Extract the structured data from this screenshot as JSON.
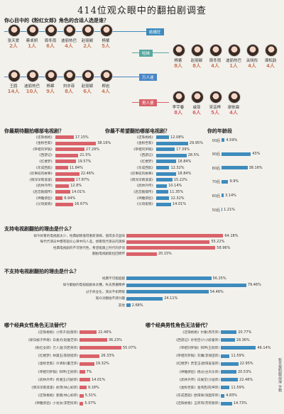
{
  "main_title": "414位观众眼中的翻拍剧调查",
  "casting": {
    "title": "你心目中的《粉红女郎》角色的合适人选是谁？",
    "roles": [
      {
        "name": "结婚狂",
        "color": "#3d8bbd"
      },
      {
        "name": "哈妹",
        "color": "#57a9a0"
      },
      {
        "name": "万人迷",
        "color": "#4a86c8"
      },
      {
        "name": "男人婆",
        "color": "#d9626a"
      }
    ],
    "groups": [
      {
        "role": "结婚狂",
        "candidates": [
          {
            "name": "张天爱",
            "votes": "2人"
          },
          {
            "name": "蔡卓妍",
            "votes": "1人"
          },
          {
            "name": "周冬雨",
            "votes": "6人"
          },
          {
            "name": "迪丽热巴",
            "votes": "4人"
          },
          {
            "name": "赵丽颖",
            "votes": "2人"
          },
          {
            "name": "杨紫",
            "votes": "5人"
          }
        ]
      },
      {
        "role": "哈妹",
        "candidates": [
          {
            "name": "杨紫",
            "votes": "8人"
          },
          {
            "name": "赵丽颖",
            "votes": "8人"
          },
          {
            "name": "周冬雨",
            "votes": "4人"
          },
          {
            "name": "迪丽热巴",
            "votes": "1人"
          },
          {
            "name": "关晓彤",
            "votes": "4人"
          },
          {
            "name": "谭松韵",
            "votes": "4人"
          }
        ]
      },
      {
        "role": "万人迷",
        "candidates": [
          {
            "name": "王鸥",
            "votes": "14人"
          },
          {
            "name": "迪丽热巴",
            "votes": "10人"
          },
          {
            "name": "杨幂",
            "votes": "9人"
          },
          {
            "name": "刘亦菲",
            "votes": "8人"
          },
          {
            "name": "赵丽颖",
            "votes": "6人"
          },
          {
            "name": "柳岩",
            "votes": "4人"
          }
        ]
      },
      {
        "role": "男人婆",
        "candidates": [
          {
            "name": "李宇春",
            "votes": "8人"
          },
          {
            "name": "咸菲",
            "votes": "6人"
          },
          {
            "name": "宋芸桦",
            "votes": "5人"
          },
          {
            "name": "谢依霖",
            "votes": "4人"
          }
        ]
      }
    ]
  },
  "chart_data": [
    {
      "type": "bar",
      "title": "你最期待翻拍哪部电视剧？",
      "categories": [
        "《还珠格格》",
        "《金粉世家》",
        "《宰相刘罗锅》",
        "《西游记》",
        "《红楼梦》",
        "《东成西就》",
        "《炊事班的故事》",
        "《情深深雨濛濛》",
        "《武林外传》",
        "《后宫甄嬛传》",
        "《神雕侠侣》",
        "《父母爱情》"
      ],
      "values": [
        17.15,
        38.16,
        27.29,
        21.5,
        19.57,
        11.84,
        22.46,
        17.87,
        12.8,
        14.01,
        6.94,
        16.67
      ]
    },
    {
      "type": "bar",
      "title": "你最不希望翻拍哪部电视剧？",
      "categories": [
        "《还珠格格》",
        "《金粉世家》",
        "《宰相刘罗锅》",
        "《西游记》",
        "《红楼梦》",
        "《东成西就》",
        "《炊事班的故事》",
        "《情深深雨濛濛》",
        "《武林外传》",
        "《后宫甄嬛传》",
        "《神雕侠侣》",
        "《父母爱情》"
      ],
      "values": [
        12.08,
        29.95,
        17.39,
        28.5,
        18.84,
        12.32,
        18.84,
        15.22,
        10.14,
        11.35,
        12.32,
        14.01
      ]
    },
    {
      "type": "bar",
      "title": "你的年龄段",
      "categories": [
        "00后",
        "90后",
        "80后",
        "70后",
        "60后",
        "50后"
      ],
      "values": [
        4.59,
        43,
        38.16,
        9.9,
        3.14,
        1.21
      ]
    },
    {
      "type": "bar",
      "title": "支持电视剧翻拍的理由是什么？",
      "categories": [
        "如今好看的电视剧太少，经典剧情值得重新演绎，值得多次品味",
        "每代代演员中都有观众心目中的人选，想看现代演员的演绎",
        "经典电视剧的不可替代性，希望能跟上时代的步伐",
        "翻拍电视剧能拉回情怀"
      ],
      "values": [
        64.18,
        55.22,
        58.96,
        20.15
      ]
    },
    {
      "type": "bar",
      "title": "不支持电视剧翻拍的理由是什么？",
      "categories": [
        "经典不可能超越",
        "如今翻拍的电视剧剧本太糟，失去原著精神",
        "过于商业化，演员不如原版",
        "观众对翻拍不感兴趣",
        "其他"
      ],
      "values": [
        56.25,
        79.46,
        54.46,
        24.11,
        2.68
      ]
    },
    {
      "type": "bar",
      "title": "哪个经典女性角色无法替代？",
      "categories": [
        "《还珠格格》小燕子(赵薇饰)",
        "《新白娘子传奇》白素贞(赵雅芝饰)",
        "《粉红女郎》万人迷(刘若英饰)",
        "《红楼梦》林黛玉(陈晓旭饰)",
        "《金粉世家》冷清秋(董洁饰)",
        "《宰相刘罗锅》和珅(王刚饰)",
        "《武林外传》佟湘玉(闫妮饰)",
        "《情深深雨濛濛》依萍(林心如饰)",
        "《还珠格格》紫薇(林心如饰)",
        "《神雕侠侣》小龙女(李若彤饰)"
      ],
      "values": [
        22.46,
        36.23,
        55.07,
        26.33,
        19.32,
        7,
        14.01,
        9.18,
        5.31,
        5.07
      ]
    },
    {
      "type": "bar",
      "title": "哪个经典男性角色无法替代？",
      "categories": [
        "《还珠格格》尔康(周杰饰)",
        "《西游记》孙悟空(六小龄童饰)",
        "《宰相刘罗锅》和珅(王刚饰)",
        "《宰相刘罗锅》刘墉(李保田饰)",
        "《红楼梦》贾宝玉(欧阳奋强饰)",
        "《神雕侠侣》杨过(古天乐饰)",
        "《武林外传》白展堂(沙溢饰)",
        "《金粉世家》金燕西(陈坤饰)",
        "《东成西就》欧阳锋(张国荣饰)",
        "《还珠格格》五阿哥(苏有朋饰)"
      ],
      "values": [
        20.77,
        18.36,
        46.14,
        11.59,
        22.95,
        20.53,
        22.46,
        11.59,
        4.83,
        14.73
      ]
    }
  ],
  "credit": "新京报制图/倪萍 许畅"
}
